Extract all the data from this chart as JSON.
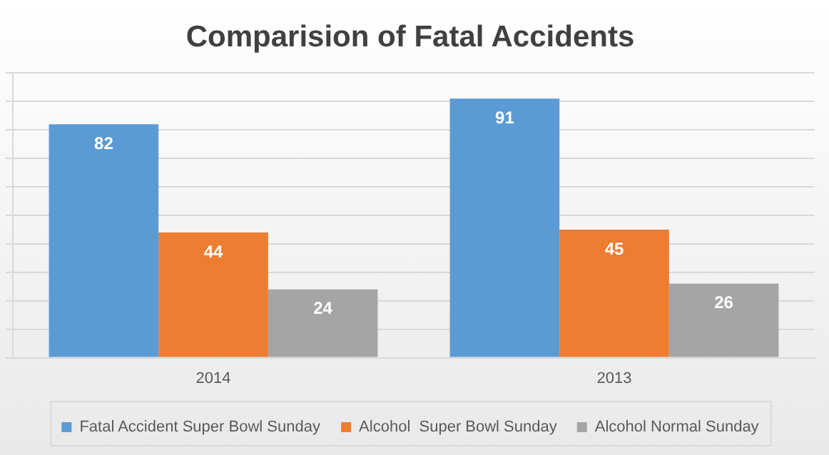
{
  "chart_data": {
    "type": "bar",
    "title": "Comparision of Fatal Accidents",
    "categories": [
      "2014",
      "2013"
    ],
    "series": [
      {
        "name": "Fatal Accident Super Bowl Sunday",
        "color": "#5b9bd5",
        "values": [
          82,
          91
        ]
      },
      {
        "name": "Alcohol  Super Bowl Sunday",
        "color": "#ed7d31",
        "values": [
          44,
          45
        ]
      },
      {
        "name": "Alcohol Normal Sunday",
        "color": "#a5a5a5",
        "values": [
          24,
          26
        ]
      }
    ],
    "ylim": [
      0,
      100
    ],
    "yticks": [
      {
        "value": 0,
        "label": null
      },
      {
        "value": 10,
        "label": null
      },
      {
        "value": 20,
        "label": null
      },
      {
        "value": 30,
        "label": null
      },
      {
        "value": 40,
        "label": null
      },
      {
        "value": 50,
        "label": null
      },
      {
        "value": 60,
        "label": null
      },
      {
        "value": 70,
        "label": null
      },
      {
        "value": 80,
        "label": null
      },
      {
        "value": 90,
        "label": null
      },
      {
        "value": 100,
        "label": null
      }
    ],
    "tick_labels": "x",
    "grid": "y",
    "legend": "bottom",
    "data_labels": true
  }
}
